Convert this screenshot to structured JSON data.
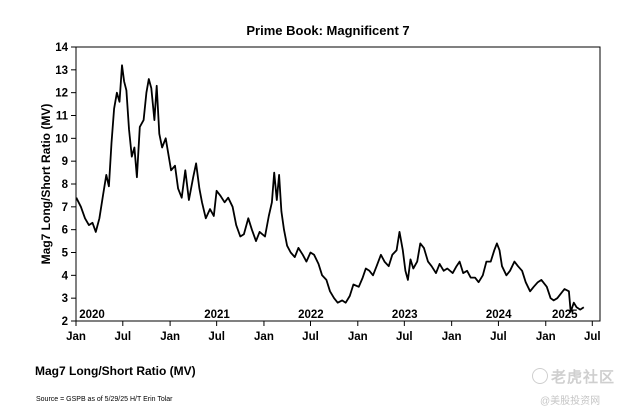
{
  "chart_data": {
    "type": "line",
    "title": "Prime Book: Magnificent 7",
    "ylabel": "Mag7 Long/Short Ratio (MV)",
    "xlabel": "",
    "ylim": [
      2,
      14
    ],
    "yticks": [
      "2",
      "3",
      "4",
      "5",
      "6",
      "7",
      "8",
      "9",
      "10",
      "11",
      "12",
      "13",
      "14"
    ],
    "xlim": [
      "2020-01-01",
      "2025-07-31"
    ],
    "xticks": [
      "Jan",
      "Jul",
      "Jan",
      "Jul",
      "Jan",
      "Jul",
      "Jan",
      "Jul",
      "Jan",
      "Jul",
      "Jan",
      "Jul"
    ],
    "year_labels": [
      "2020",
      "2021",
      "2022",
      "2023",
      "2024",
      "2025"
    ],
    "grid": false,
    "series": [
      {
        "name": "",
        "color": "#000000",
        "points": [
          [
            "2020-01-02",
            7.4
          ],
          [
            "2020-01-20",
            7.0
          ],
          [
            "2020-02-05",
            6.5
          ],
          [
            "2020-02-20",
            6.2
          ],
          [
            "2020-03-05",
            6.3
          ],
          [
            "2020-03-18",
            5.9
          ],
          [
            "2020-04-01",
            6.5
          ],
          [
            "2020-04-15",
            7.5
          ],
          [
            "2020-04-28",
            8.4
          ],
          [
            "2020-05-08",
            7.9
          ],
          [
            "2020-05-18",
            9.8
          ],
          [
            "2020-05-28",
            11.3
          ],
          [
            "2020-06-08",
            12.0
          ],
          [
            "2020-06-18",
            11.6
          ],
          [
            "2020-06-28",
            13.2
          ],
          [
            "2020-07-06",
            12.5
          ],
          [
            "2020-07-15",
            12.1
          ],
          [
            "2020-07-25",
            10.4
          ],
          [
            "2020-08-05",
            9.2
          ],
          [
            "2020-08-15",
            9.6
          ],
          [
            "2020-08-25",
            8.3
          ],
          [
            "2020-09-05",
            10.5
          ],
          [
            "2020-09-20",
            10.8
          ],
          [
            "2020-10-01",
            12.0
          ],
          [
            "2020-10-10",
            12.6
          ],
          [
            "2020-10-20",
            12.2
          ],
          [
            "2020-11-01",
            10.8
          ],
          [
            "2020-11-10",
            12.3
          ],
          [
            "2020-11-20",
            10.2
          ],
          [
            "2020-12-01",
            9.6
          ],
          [
            "2020-12-15",
            10.0
          ],
          [
            "2021-01-05",
            8.6
          ],
          [
            "2021-01-20",
            8.8
          ],
          [
            "2021-02-01",
            7.8
          ],
          [
            "2021-02-15",
            7.4
          ],
          [
            "2021-03-01",
            8.6
          ],
          [
            "2021-03-15",
            7.3
          ],
          [
            "2021-04-01",
            8.3
          ],
          [
            "2021-04-12",
            8.9
          ],
          [
            "2021-04-25",
            7.8
          ],
          [
            "2021-05-05",
            7.2
          ],
          [
            "2021-05-20",
            6.5
          ],
          [
            "2021-06-05",
            6.9
          ],
          [
            "2021-06-20",
            6.6
          ],
          [
            "2021-07-01",
            7.7
          ],
          [
            "2021-07-15",
            7.5
          ],
          [
            "2021-08-01",
            7.2
          ],
          [
            "2021-08-15",
            7.4
          ],
          [
            "2021-09-01",
            7.0
          ],
          [
            "2021-09-15",
            6.2
          ],
          [
            "2021-10-01",
            5.7
          ],
          [
            "2021-10-15",
            5.8
          ],
          [
            "2021-11-01",
            6.5
          ],
          [
            "2021-11-15",
            6.0
          ],
          [
            "2021-12-01",
            5.5
          ],
          [
            "2021-12-15",
            5.9
          ],
          [
            "2022-01-05",
            5.7
          ],
          [
            "2022-01-20",
            6.6
          ],
          [
            "2022-02-01",
            7.2
          ],
          [
            "2022-02-10",
            8.5
          ],
          [
            "2022-02-20",
            7.3
          ],
          [
            "2022-03-01",
            8.4
          ],
          [
            "2022-03-10",
            6.8
          ],
          [
            "2022-03-20",
            6.0
          ],
          [
            "2022-04-01",
            5.3
          ],
          [
            "2022-04-15",
            5.0
          ],
          [
            "2022-05-01",
            4.8
          ],
          [
            "2022-05-15",
            5.2
          ],
          [
            "2022-06-01",
            4.9
          ],
          [
            "2022-06-15",
            4.6
          ],
          [
            "2022-07-01",
            5.0
          ],
          [
            "2022-07-15",
            4.9
          ],
          [
            "2022-08-01",
            4.5
          ],
          [
            "2022-08-15",
            4.0
          ],
          [
            "2022-09-01",
            3.8
          ],
          [
            "2022-09-15",
            3.3
          ],
          [
            "2022-10-01",
            3.0
          ],
          [
            "2022-10-15",
            2.8
          ],
          [
            "2022-11-01",
            2.9
          ],
          [
            "2022-11-15",
            2.8
          ],
          [
            "2022-12-01",
            3.1
          ],
          [
            "2022-12-15",
            3.6
          ],
          [
            "2023-01-05",
            3.5
          ],
          [
            "2023-01-20",
            3.9
          ],
          [
            "2023-02-01",
            4.3
          ],
          [
            "2023-02-15",
            4.2
          ],
          [
            "2023-03-01",
            4.0
          ],
          [
            "2023-03-15",
            4.4
          ],
          [
            "2023-04-01",
            4.9
          ],
          [
            "2023-04-15",
            4.6
          ],
          [
            "2023-05-01",
            4.4
          ],
          [
            "2023-05-15",
            4.9
          ],
          [
            "2023-06-01",
            5.1
          ],
          [
            "2023-06-12",
            5.9
          ],
          [
            "2023-06-25",
            5.1
          ],
          [
            "2023-07-05",
            4.2
          ],
          [
            "2023-07-15",
            3.8
          ],
          [
            "2023-07-25",
            4.7
          ],
          [
            "2023-08-05",
            4.3
          ],
          [
            "2023-08-20",
            4.6
          ],
          [
            "2023-09-01",
            5.4
          ],
          [
            "2023-09-15",
            5.2
          ],
          [
            "2023-10-01",
            4.6
          ],
          [
            "2023-10-15",
            4.4
          ],
          [
            "2023-11-01",
            4.1
          ],
          [
            "2023-11-15",
            4.5
          ],
          [
            "2023-12-01",
            4.2
          ],
          [
            "2023-12-15",
            4.3
          ],
          [
            "2024-01-05",
            4.1
          ],
          [
            "2024-01-20",
            4.4
          ],
          [
            "2024-02-01",
            4.6
          ],
          [
            "2024-02-15",
            4.1
          ],
          [
            "2024-03-01",
            4.2
          ],
          [
            "2024-03-15",
            3.9
          ],
          [
            "2024-04-01",
            3.9
          ],
          [
            "2024-04-15",
            3.7
          ],
          [
            "2024-05-01",
            4.0
          ],
          [
            "2024-05-15",
            4.6
          ],
          [
            "2024-06-01",
            4.6
          ],
          [
            "2024-06-15",
            5.1
          ],
          [
            "2024-06-25",
            5.4
          ],
          [
            "2024-07-05",
            5.1
          ],
          [
            "2024-07-15",
            4.4
          ],
          [
            "2024-08-01",
            4.0
          ],
          [
            "2024-08-15",
            4.2
          ],
          [
            "2024-09-01",
            4.6
          ],
          [
            "2024-09-15",
            4.4
          ],
          [
            "2024-10-01",
            4.2
          ],
          [
            "2024-10-15",
            3.7
          ],
          [
            "2024-11-01",
            3.3
          ],
          [
            "2024-11-15",
            3.5
          ],
          [
            "2024-12-01",
            3.7
          ],
          [
            "2024-12-15",
            3.8
          ],
          [
            "2025-01-05",
            3.5
          ],
          [
            "2025-01-20",
            3.0
          ],
          [
            "2025-02-01",
            2.9
          ],
          [
            "2025-02-15",
            3.0
          ],
          [
            "2025-03-01",
            3.2
          ],
          [
            "2025-03-15",
            3.4
          ],
          [
            "2025-04-01",
            3.3
          ],
          [
            "2025-04-08",
            2.4
          ],
          [
            "2025-04-20",
            2.8
          ],
          [
            "2025-05-01",
            2.6
          ],
          [
            "2025-05-15",
            2.5
          ],
          [
            "2025-05-29",
            2.6
          ]
        ]
      }
    ]
  },
  "caption": "Mag7 Long/Short Ratio (MV)",
  "source": "Source = GSPB as of 5/29/25 H/T Erin Tolar",
  "watermark": {
    "brand": "老虎社区",
    "handle": "@美股投资网"
  }
}
